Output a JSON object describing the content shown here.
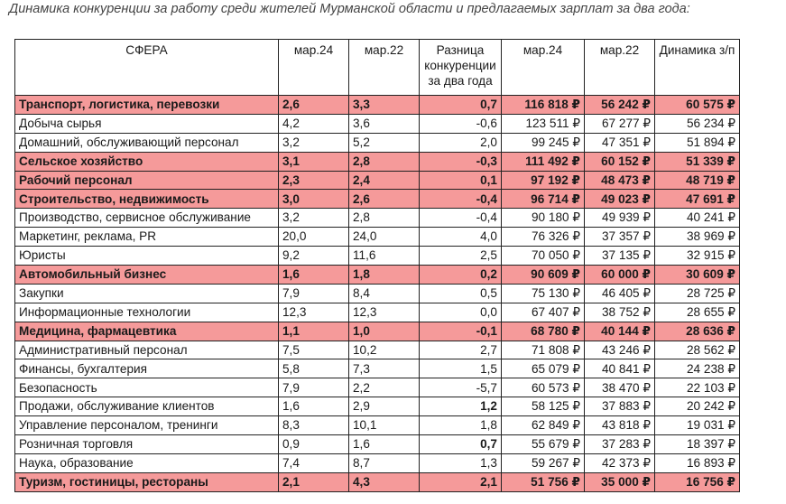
{
  "caption": "Динамика конкуренции за работу среди жителей Мурманской области и предлагаемых зарплат за два года:",
  "headers": {
    "sphere": "СФЕРА",
    "comp24": "мар.24",
    "comp22": "мар.22",
    "diff": "Разница конкуренции за два года",
    "sal24": "мар.24",
    "sal22": "мар.22",
    "dyn": "Динамика з/п"
  },
  "rows": [
    {
      "sphere": "Транспорт, логистика, перевозки",
      "c24": "2,6",
      "c22": "3,3",
      "diff": "0,7",
      "s24": "116 818 ₽",
      "s22": "56 242 ₽",
      "dyn": "60 575 ₽",
      "highlight": true
    },
    {
      "sphere": "Добыча сырья",
      "c24": "4,2",
      "c22": "3,6",
      "diff": "-0,6",
      "s24": "123 511 ₽",
      "s22": "67 277 ₽",
      "dyn": "56 234 ₽",
      "highlight": false
    },
    {
      "sphere": "Домашний, обслуживающий персонал",
      "c24": "3,2",
      "c22": "5,2",
      "diff": "2,0",
      "s24": "99 245 ₽",
      "s22": "47 351 ₽",
      "dyn": "51 894 ₽",
      "highlight": false
    },
    {
      "sphere": "Сельское хозяйство",
      "c24": "3,1",
      "c22": "2,8",
      "diff": "-0,3",
      "s24": "111 492 ₽",
      "s22": "60 152 ₽",
      "dyn": "51 339 ₽",
      "highlight": true
    },
    {
      "sphere": "Рабочий персонал",
      "c24": "2,3",
      "c22": "2,4",
      "diff": "0,1",
      "s24": "97 192 ₽",
      "s22": "48 473 ₽",
      "dyn": "48 719 ₽",
      "highlight": true
    },
    {
      "sphere": "Строительство, недвижимость",
      "c24": "3,0",
      "c22": "2,6",
      "diff": "-0,4",
      "s24": "96 714 ₽",
      "s22": "49 023 ₽",
      "dyn": "47 691 ₽",
      "highlight": true
    },
    {
      "sphere": "Производство, сервисное обслуживание",
      "c24": "3,2",
      "c22": "2,8",
      "diff": "-0,4",
      "s24": "90 180 ₽",
      "s22": "49 939 ₽",
      "dyn": "40 241 ₽",
      "highlight": false
    },
    {
      "sphere": "Маркетинг, реклама, PR",
      "c24": "20,0",
      "c22": "24,0",
      "diff": "4,0",
      "s24": "76 326 ₽",
      "s22": "37 357 ₽",
      "dyn": "38 969 ₽",
      "highlight": false
    },
    {
      "sphere": "Юристы",
      "c24": "9,2",
      "c22": "11,6",
      "diff": "2,5",
      "s24": "70 050 ₽",
      "s22": "37 135 ₽",
      "dyn": "32 915 ₽",
      "highlight": false
    },
    {
      "sphere": "Автомобильный бизнес",
      "c24": "1,6",
      "c22": "1,8",
      "diff": "0,2",
      "s24": "90 609 ₽",
      "s22": "60 000 ₽",
      "dyn": "30 609 ₽",
      "highlight": true
    },
    {
      "sphere": "Закупки",
      "c24": "7,9",
      "c22": "8,4",
      "diff": "0,5",
      "s24": "75 130 ₽",
      "s22": "46 405 ₽",
      "dyn": "28 725 ₽",
      "highlight": false
    },
    {
      "sphere": "Информационные технологии",
      "c24": "12,3",
      "c22": "12,3",
      "diff": "0,0",
      "s24": "67 407 ₽",
      "s22": "38 752 ₽",
      "dyn": "28 655 ₽",
      "highlight": false
    },
    {
      "sphere": "Медицина, фармацевтика",
      "c24": "1,1",
      "c22": "1,0",
      "diff": "-0,1",
      "s24": "68 780 ₽",
      "s22": "40 144 ₽",
      "dyn": "28 636 ₽",
      "highlight": true
    },
    {
      "sphere": "Административный персонал",
      "c24": "7,5",
      "c22": "10,2",
      "diff": "2,7",
      "s24": "71 808 ₽",
      "s22": "43 246 ₽",
      "dyn": "28 562 ₽",
      "highlight": false
    },
    {
      "sphere": "Финансы, бухгалтерия",
      "c24": "5,8",
      "c22": "7,3",
      "diff": "1,5",
      "s24": "65 079 ₽",
      "s22": "40 841 ₽",
      "dyn": "24 238 ₽",
      "highlight": false
    },
    {
      "sphere": "Безопасность",
      "c24": "7,9",
      "c22": "2,2",
      "diff": "-5,7",
      "s24": "60 573 ₽",
      "s22": "38 470 ₽",
      "dyn": "22 103 ₽",
      "highlight": false
    },
    {
      "sphere": "Продажи, обслуживание клиентов",
      "c24": "1,6",
      "c22": "2,9",
      "diff": "1,2",
      "s24": "58 125 ₽",
      "s22": "37 883 ₽",
      "dyn": "20 242 ₽",
      "highlight": false,
      "bold_diff": true
    },
    {
      "sphere": "Управление персоналом, тренинги",
      "c24": "8,3",
      "c22": "10,1",
      "diff": "1,8",
      "s24": "62 849 ₽",
      "s22": "43 818 ₽",
      "dyn": "19 031 ₽",
      "highlight": false
    },
    {
      "sphere": "Розничная торговля",
      "c24": "0,9",
      "c22": "1,6",
      "diff": "0,7",
      "s24": "55 679 ₽",
      "s22": "37 283 ₽",
      "dyn": "18 397 ₽",
      "highlight": false,
      "bold_diff": true
    },
    {
      "sphere": "Наука, образование",
      "c24": "7,4",
      "c22": "8,7",
      "diff": "1,3",
      "s24": "59 267 ₽",
      "s22": "42 373 ₽",
      "dyn": "16 893 ₽",
      "highlight": false
    },
    {
      "sphere": "Туризм, гостиницы, рестораны",
      "c24": "2,1",
      "c22": "4,3",
      "diff": "2,1",
      "s24": "51 756 ₽",
      "s22": "35 000 ₽",
      "dyn": "16 756 ₽",
      "highlight": true
    }
  ],
  "colors": {
    "highlight": "#f59a9a",
    "border": "#222222"
  }
}
